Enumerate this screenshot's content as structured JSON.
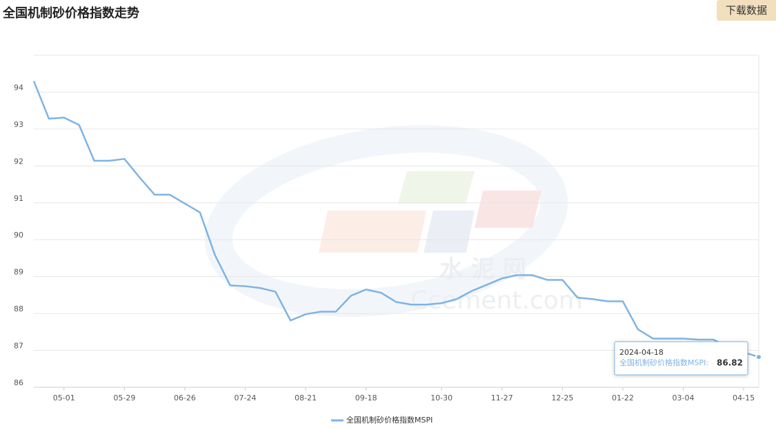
{
  "header": {
    "title": "全国机制砂价格指数走势",
    "button": "下载数据"
  },
  "watermark": {
    "cn": "水 泥 网",
    "en": "Ccement.com"
  },
  "chart_data": {
    "type": "line",
    "categories": [
      null,
      null,
      "05-01",
      null,
      null,
      null,
      "05-29",
      null,
      null,
      null,
      "06-26",
      null,
      null,
      null,
      "07-24",
      null,
      null,
      null,
      "08-21",
      null,
      null,
      null,
      "09-18",
      null,
      null,
      null,
      null,
      "10-30",
      null,
      null,
      null,
      "11-27",
      null,
      null,
      null,
      "12-25",
      null,
      null,
      null,
      "01-22",
      null,
      null,
      null,
      "03-04",
      null,
      null,
      null,
      "04-15",
      null
    ],
    "series": [
      {
        "name": "全国机制砂价格指数MSPI",
        "color": "#7eb3e4",
        "values": [
          94.3,
          93.28,
          93.31,
          93.11,
          92.14,
          92.14,
          92.19,
          91.69,
          91.22,
          91.22,
          90.98,
          90.74,
          89.58,
          88.76,
          88.74,
          88.69,
          88.59,
          87.81,
          87.98,
          88.05,
          88.05,
          88.48,
          88.65,
          88.56,
          88.31,
          88.24,
          88.24,
          88.28,
          88.39,
          88.61,
          88.78,
          88.95,
          89.04,
          89.04,
          88.91,
          88.91,
          88.43,
          88.39,
          88.33,
          88.33,
          87.57,
          87.32,
          87.32,
          87.32,
          87.29,
          87.29,
          87.1,
          86.95,
          86.82
        ]
      }
    ],
    "ylim": [
      86,
      95
    ],
    "yticks": [
      86,
      87,
      88,
      89,
      90,
      91,
      92,
      93,
      94
    ],
    "grid": true,
    "legend": "bottom",
    "tooltip": {
      "date": "2024-04-18",
      "label": "全国机制砂价格指数MSPI:"
    }
  }
}
